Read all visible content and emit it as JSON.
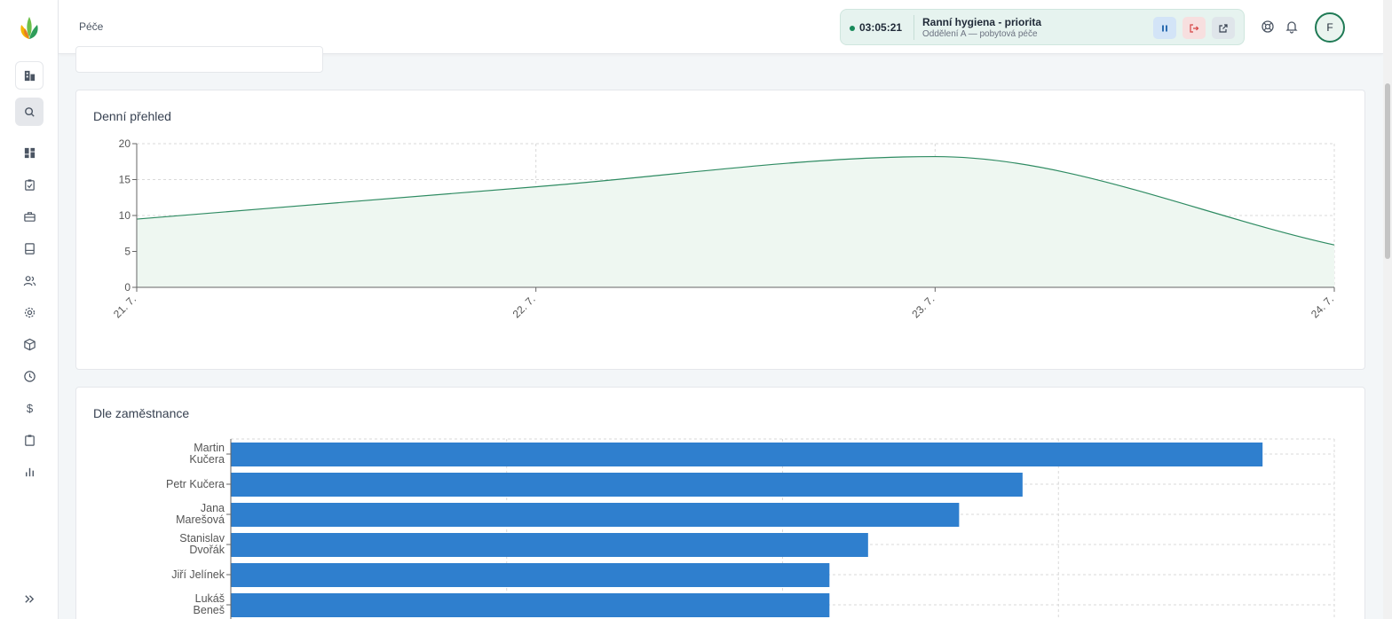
{
  "header": {
    "title": "Péče",
    "timer": {
      "time": "03:05:21",
      "task": "Ranní hygiena - priorita",
      "department": "Oddělení A — pobytová péče"
    },
    "avatar_initial": "F"
  },
  "sidebar": {
    "icons": [
      "building-icon",
      "search-icon",
      "dashboard-icon",
      "clipboard-check-icon",
      "briefcase-icon",
      "book-icon",
      "users-icon",
      "settings-icon",
      "box-icon",
      "clock-icon",
      "dollar-icon",
      "clipboard-icon",
      "bar-chart-icon",
      "expand-icon"
    ]
  },
  "colors": {
    "accent_green": "#178a5a",
    "line_green": "#2e8b62",
    "area_fill": "#eef7f1",
    "bar_blue": "#2f7fce"
  },
  "daily": {
    "title": "Denní přehled",
    "chart_data": {
      "type": "area",
      "x": [
        "21. 7.",
        "22. 7.",
        "23. 7.",
        "24. 7."
      ],
      "values": [
        9.5,
        14,
        18.2,
        5.9
      ],
      "ylim": [
        0,
        20
      ],
      "yticks": [
        "0",
        "5",
        "10",
        "15",
        "20"
      ],
      "grid": true,
      "smooth": true
    }
  },
  "employees": {
    "title": "Dle zaměstnance",
    "chart_data": {
      "type": "bar",
      "orientation": "horizontal",
      "categories": [
        [
          "Martin",
          "Kučera"
        ],
        [
          "Petr Kučera"
        ],
        [
          "Jana",
          "Marešová"
        ],
        [
          "Stanislav",
          "Dvořák"
        ],
        [
          "Jiří Jelínek"
        ],
        [
          "Lukáš",
          "Beneš"
        ]
      ],
      "values": [
        37.4,
        28.7,
        26.4,
        23.1,
        21.7,
        21.7
      ],
      "xlim": [
        0,
        40
      ],
      "grid": true
    }
  }
}
